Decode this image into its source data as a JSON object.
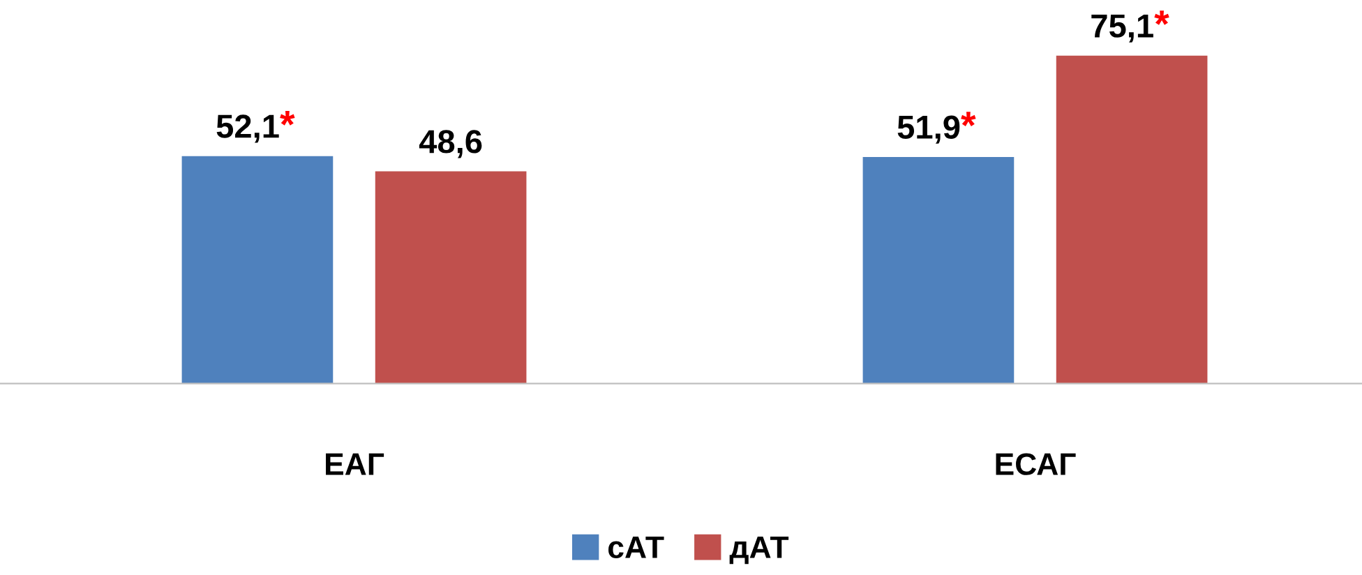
{
  "chart_data": {
    "type": "bar",
    "categories": [
      "ЕАГ",
      "ЕСАГ"
    ],
    "series": [
      {
        "name": "сАТ",
        "color": "#4f81bd",
        "values": [
          52.1,
          51.9
        ],
        "value_labels": [
          "52,1*",
          "51,9*"
        ]
      },
      {
        "name": "дАТ",
        "color": "#c0504d",
        "values": [
          48.6,
          75.1
        ],
        "value_labels": [
          "48,6",
          "75,1*"
        ]
      }
    ],
    "legend": "bottom",
    "grid": false
  }
}
